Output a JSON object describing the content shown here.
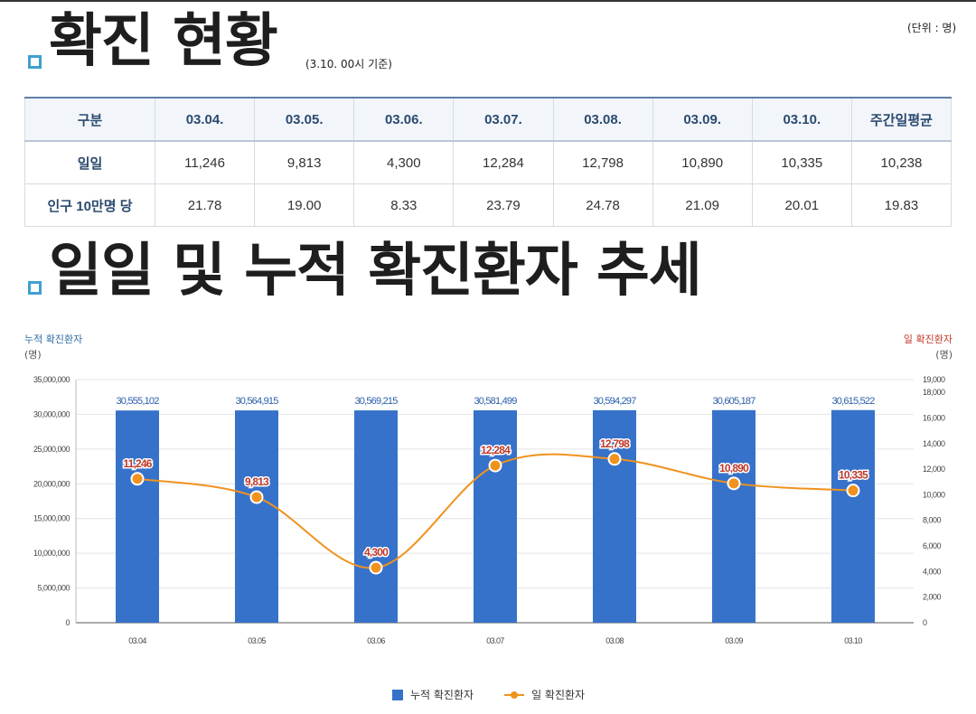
{
  "header": {
    "title1": "확진 현황",
    "basis": "(3.10. 00시 기준)",
    "unit": "(단위 : 명)"
  },
  "table": {
    "columns": [
      "구분",
      "03.04.",
      "03.05.",
      "03.06.",
      "03.07.",
      "03.08.",
      "03.09.",
      "03.10.",
      "주간일평균"
    ],
    "rows": [
      {
        "label": "일일",
        "values": [
          "11,246",
          "9,813",
          "4,300",
          "12,284",
          "12,798",
          "10,890",
          "10,335",
          "10,238"
        ]
      },
      {
        "label": "인구 10만명 당",
        "values": [
          "21.78",
          "19.00",
          "8.33",
          "23.79",
          "24.78",
          "21.09",
          "20.01",
          "19.83"
        ]
      }
    ]
  },
  "section2": {
    "title": "일일 및 누적 확진환자 추세"
  },
  "chart_data": {
    "type": "bar",
    "categories": [
      "03.04",
      "03.05",
      "03.06",
      "03.07",
      "03.08",
      "03.09",
      "03.10"
    ],
    "series": [
      {
        "name": "누적 확진환자",
        "type": "bar",
        "axis": "left",
        "color": "#3672c9",
        "values": [
          30555102,
          30564915,
          30569215,
          30581499,
          30594297,
          30605187,
          30615522
        ],
        "labels": [
          "30,555,102",
          "30,564,915",
          "30,569,215",
          "30,581,499",
          "30,594,297",
          "30,605,187",
          "30,615,522"
        ]
      },
      {
        "name": "일 확진환자",
        "type": "line",
        "axis": "right",
        "color": "#f0921e",
        "values": [
          11246,
          9813,
          4300,
          12284,
          12798,
          10890,
          10335
        ],
        "labels": [
          "11,246",
          "9,813",
          "4,300",
          "12,284",
          "12,798",
          "10,890",
          "10,335"
        ]
      }
    ],
    "left_axis": {
      "title": "누적 확진환자",
      "unit": "(명)",
      "ylim": [
        0,
        35000000
      ],
      "ticks": [
        0,
        5000000,
        10000000,
        15000000,
        20000000,
        25000000,
        30000000,
        35000000
      ],
      "tick_labels": [
        "0",
        "5,000,000",
        "10,000,000",
        "15,000,000",
        "20,000,000",
        "25,000,000",
        "30,000,000",
        "35,000,000"
      ]
    },
    "right_axis": {
      "title": "일 확진환자",
      "unit": "(명)",
      "ylim": [
        0,
        19000
      ],
      "ticks": [
        0,
        2000,
        4000,
        6000,
        8000,
        10000,
        12000,
        14000,
        16000,
        18000,
        19000
      ],
      "tick_labels": [
        "0",
        "2,000",
        "4,000",
        "6,000",
        "8,000",
        "10,000",
        "12,000",
        "14,000",
        "16,000",
        "18,000",
        "19,000"
      ]
    },
    "grid": true,
    "legend_position": "bottom-center",
    "colors": {
      "bar": "#3672c9",
      "line": "#f0921e",
      "point_label": "#c0392b",
      "left_axis_title": "#2e6da4",
      "right_axis_title": "#c0392b"
    }
  }
}
